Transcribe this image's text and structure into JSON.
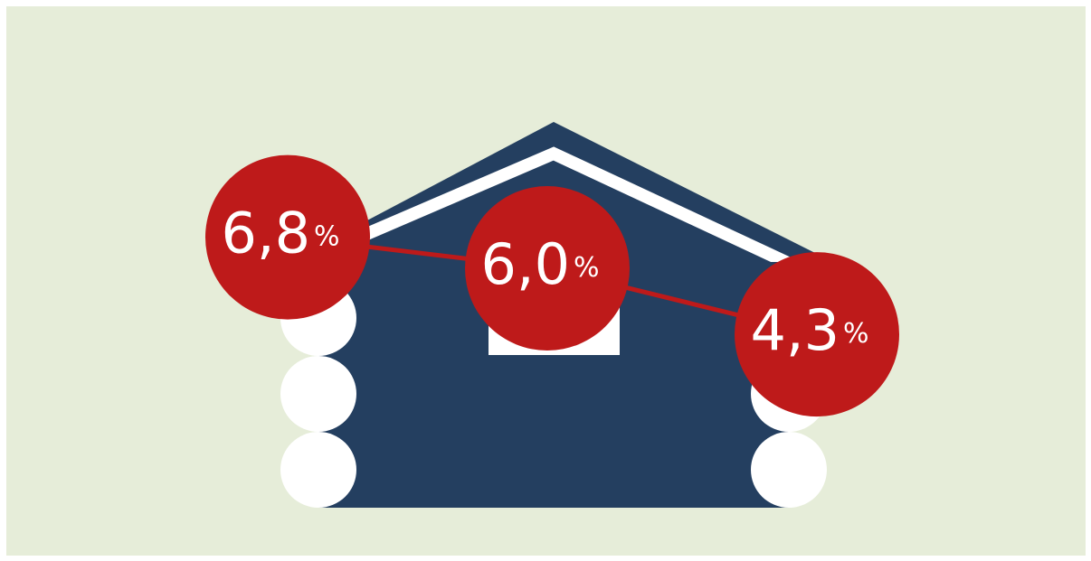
{
  "chart_data": {
    "type": "line",
    "values": [
      6.8,
      6.0,
      4.3
    ],
    "value_labels": [
      "6,8",
      "6,0",
      "4,3"
    ],
    "unit": "%",
    "color": "#be1a1a"
  }
}
